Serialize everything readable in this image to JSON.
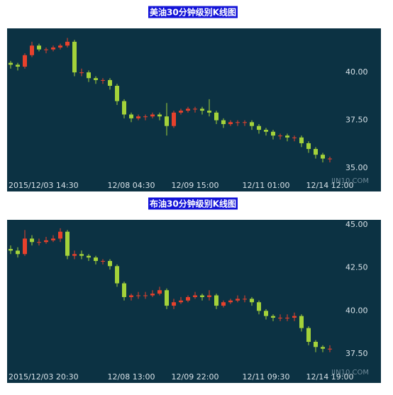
{
  "chart_data": [
    {
      "type": "candlestick",
      "title": "美油30分钟级别K线图",
      "watermark": "JIN10.COM",
      "up_color": "#e8412c",
      "down_color": "#a4d23a",
      "categories": [
        "2015/12/03 14:30",
        null,
        null,
        null,
        null,
        null,
        null,
        null,
        null,
        null,
        null,
        null,
        null,
        null,
        null,
        null,
        null,
        "12/08 04:30",
        null,
        null,
        null,
        null,
        null,
        null,
        null,
        null,
        "12/09 15:00",
        null,
        null,
        null,
        null,
        null,
        null,
        null,
        null,
        null,
        "12/11 01:00",
        null,
        null,
        null,
        null,
        null,
        null,
        null,
        null,
        "12/14 12:00"
      ],
      "open": [
        40.5,
        40.4,
        40.3,
        40.9,
        41.4,
        41.2,
        41.2,
        41.3,
        41.4,
        41.6,
        40.0,
        40.0,
        39.7,
        39.6,
        39.6,
        39.3,
        38.5,
        37.8,
        37.6,
        37.7,
        37.7,
        37.8,
        37.7,
        37.2,
        37.9,
        38.0,
        38.1,
        38.1,
        38.0,
        37.9,
        37.5,
        37.3,
        37.4,
        37.4,
        37.4,
        37.2,
        37.0,
        36.9,
        36.7,
        36.7,
        36.6,
        36.6,
        36.3,
        36.0,
        35.7,
        35.5
      ],
      "high": [
        40.6,
        40.5,
        41.0,
        41.6,
        41.5,
        41.3,
        41.4,
        41.5,
        41.8,
        41.7,
        40.2,
        40.1,
        39.8,
        39.7,
        39.7,
        39.4,
        38.6,
        37.9,
        37.8,
        37.8,
        37.9,
        37.9,
        38.4,
        38.0,
        38.1,
        38.2,
        38.2,
        38.2,
        38.6,
        38.0,
        37.6,
        37.5,
        37.5,
        37.5,
        37.5,
        37.3,
        37.1,
        37.0,
        36.8,
        36.8,
        36.7,
        36.7,
        36.4,
        36.1,
        35.8,
        35.6
      ],
      "low": [
        40.2,
        40.1,
        40.2,
        40.8,
        41.1,
        41.0,
        41.1,
        41.2,
        41.3,
        39.8,
        39.8,
        39.5,
        39.4,
        39.4,
        39.1,
        38.3,
        37.6,
        37.4,
        37.5,
        37.5,
        37.6,
        37.5,
        36.7,
        37.1,
        37.8,
        37.9,
        37.9,
        37.8,
        37.7,
        37.3,
        37.1,
        37.2,
        37.2,
        37.2,
        37.0,
        36.8,
        36.7,
        36.5,
        36.5,
        36.4,
        36.4,
        36.1,
        35.8,
        35.5,
        35.3,
        35.3
      ],
      "close": [
        40.4,
        40.3,
        40.9,
        41.4,
        41.2,
        41.2,
        41.3,
        41.4,
        41.6,
        40.0,
        40.0,
        39.7,
        39.6,
        39.6,
        39.3,
        38.5,
        37.8,
        37.6,
        37.7,
        37.7,
        37.8,
        37.7,
        37.2,
        37.9,
        38.0,
        38.1,
        38.1,
        38.0,
        37.9,
        37.5,
        37.3,
        37.4,
        37.4,
        37.4,
        37.2,
        37.0,
        36.9,
        36.7,
        36.7,
        36.6,
        36.6,
        36.3,
        36.0,
        35.7,
        35.5,
        35.5
      ],
      "ylim": [
        33.78,
        42.3
      ],
      "yticks": [
        {
          "value": 35,
          "label": "35.00"
        },
        {
          "value": 37.5,
          "label": "37.50"
        },
        {
          "value": 40,
          "label": "40.00"
        }
      ],
      "grid": false
    },
    {
      "type": "candlestick",
      "title": "布油30分钟级别K线图",
      "watermark": "JIN10.COM",
      "up_color": "#e8412c",
      "down_color": "#a4d23a",
      "categories": [
        "2015/12/03 20:30",
        null,
        null,
        null,
        null,
        null,
        null,
        null,
        null,
        null,
        null,
        null,
        null,
        null,
        null,
        null,
        null,
        "12/08 13:00",
        null,
        null,
        null,
        null,
        null,
        null,
        null,
        null,
        "12/09 22:00",
        null,
        null,
        null,
        null,
        null,
        null,
        null,
        null,
        null,
        "12/11 09:30",
        null,
        null,
        null,
        null,
        null,
        null,
        null,
        null,
        "12/14 19:00"
      ],
      "open": [
        43.6,
        43.5,
        43.3,
        44.2,
        44.0,
        44.0,
        44.1,
        44.2,
        44.6,
        43.2,
        43.3,
        43.2,
        43.1,
        42.9,
        42.9,
        42.6,
        41.6,
        40.8,
        40.9,
        40.9,
        40.9,
        41.0,
        41.2,
        40.3,
        40.5,
        40.6,
        40.8,
        40.9,
        40.8,
        40.9,
        40.3,
        40.5,
        40.6,
        40.7,
        40.7,
        40.5,
        40.0,
        39.7,
        39.6,
        39.6,
        39.6,
        39.7,
        39.0,
        38.2,
        37.9,
        37.8
      ],
      "high": [
        43.8,
        43.7,
        44.7,
        44.4,
        44.2,
        44.3,
        44.4,
        44.8,
        44.7,
        43.5,
        43.5,
        43.3,
        43.2,
        43.0,
        43.0,
        42.7,
        41.7,
        41.0,
        41.1,
        41.1,
        41.2,
        41.4,
        41.3,
        40.7,
        40.8,
        40.9,
        41.1,
        41.0,
        41.2,
        41.0,
        40.6,
        40.7,
        40.9,
        40.9,
        40.8,
        40.6,
        40.1,
        39.8,
        39.8,
        39.8,
        39.9,
        39.8,
        39.1,
        38.3,
        38.0,
        38.0
      ],
      "low": [
        43.3,
        43.1,
        43.2,
        43.8,
        43.8,
        43.9,
        44.0,
        44.0,
        43.0,
        43.0,
        43.0,
        42.9,
        42.7,
        42.7,
        42.4,
        41.4,
        40.6,
        40.6,
        40.7,
        40.7,
        40.8,
        40.9,
        40.1,
        40.1,
        40.4,
        40.5,
        40.7,
        40.6,
        40.6,
        40.1,
        40.2,
        40.4,
        40.5,
        40.5,
        40.3,
        39.8,
        39.5,
        39.4,
        39.4,
        39.4,
        39.4,
        38.8,
        38.0,
        37.6,
        37.6,
        37.6
      ],
      "close": [
        43.5,
        43.3,
        44.2,
        44.0,
        44.0,
        44.1,
        44.2,
        44.6,
        43.2,
        43.3,
        43.2,
        43.1,
        42.9,
        42.9,
        42.6,
        41.6,
        40.8,
        40.9,
        40.9,
        40.9,
        41.0,
        41.2,
        40.3,
        40.5,
        40.6,
        40.8,
        40.9,
        40.8,
        40.9,
        40.3,
        40.5,
        40.6,
        40.7,
        40.7,
        40.5,
        40.0,
        39.7,
        39.6,
        39.6,
        39.6,
        39.7,
        39.0,
        38.2,
        37.9,
        37.8,
        37.8
      ],
      "ylim": [
        35.81,
        45.29
      ],
      "yticks": [
        {
          "value": 37.5,
          "label": "37.50"
        },
        {
          "value": 40,
          "label": "40.00"
        },
        {
          "value": 42.5,
          "label": "42.50"
        },
        {
          "value": 45,
          "label": "45.00"
        }
      ],
      "grid": false
    }
  ]
}
